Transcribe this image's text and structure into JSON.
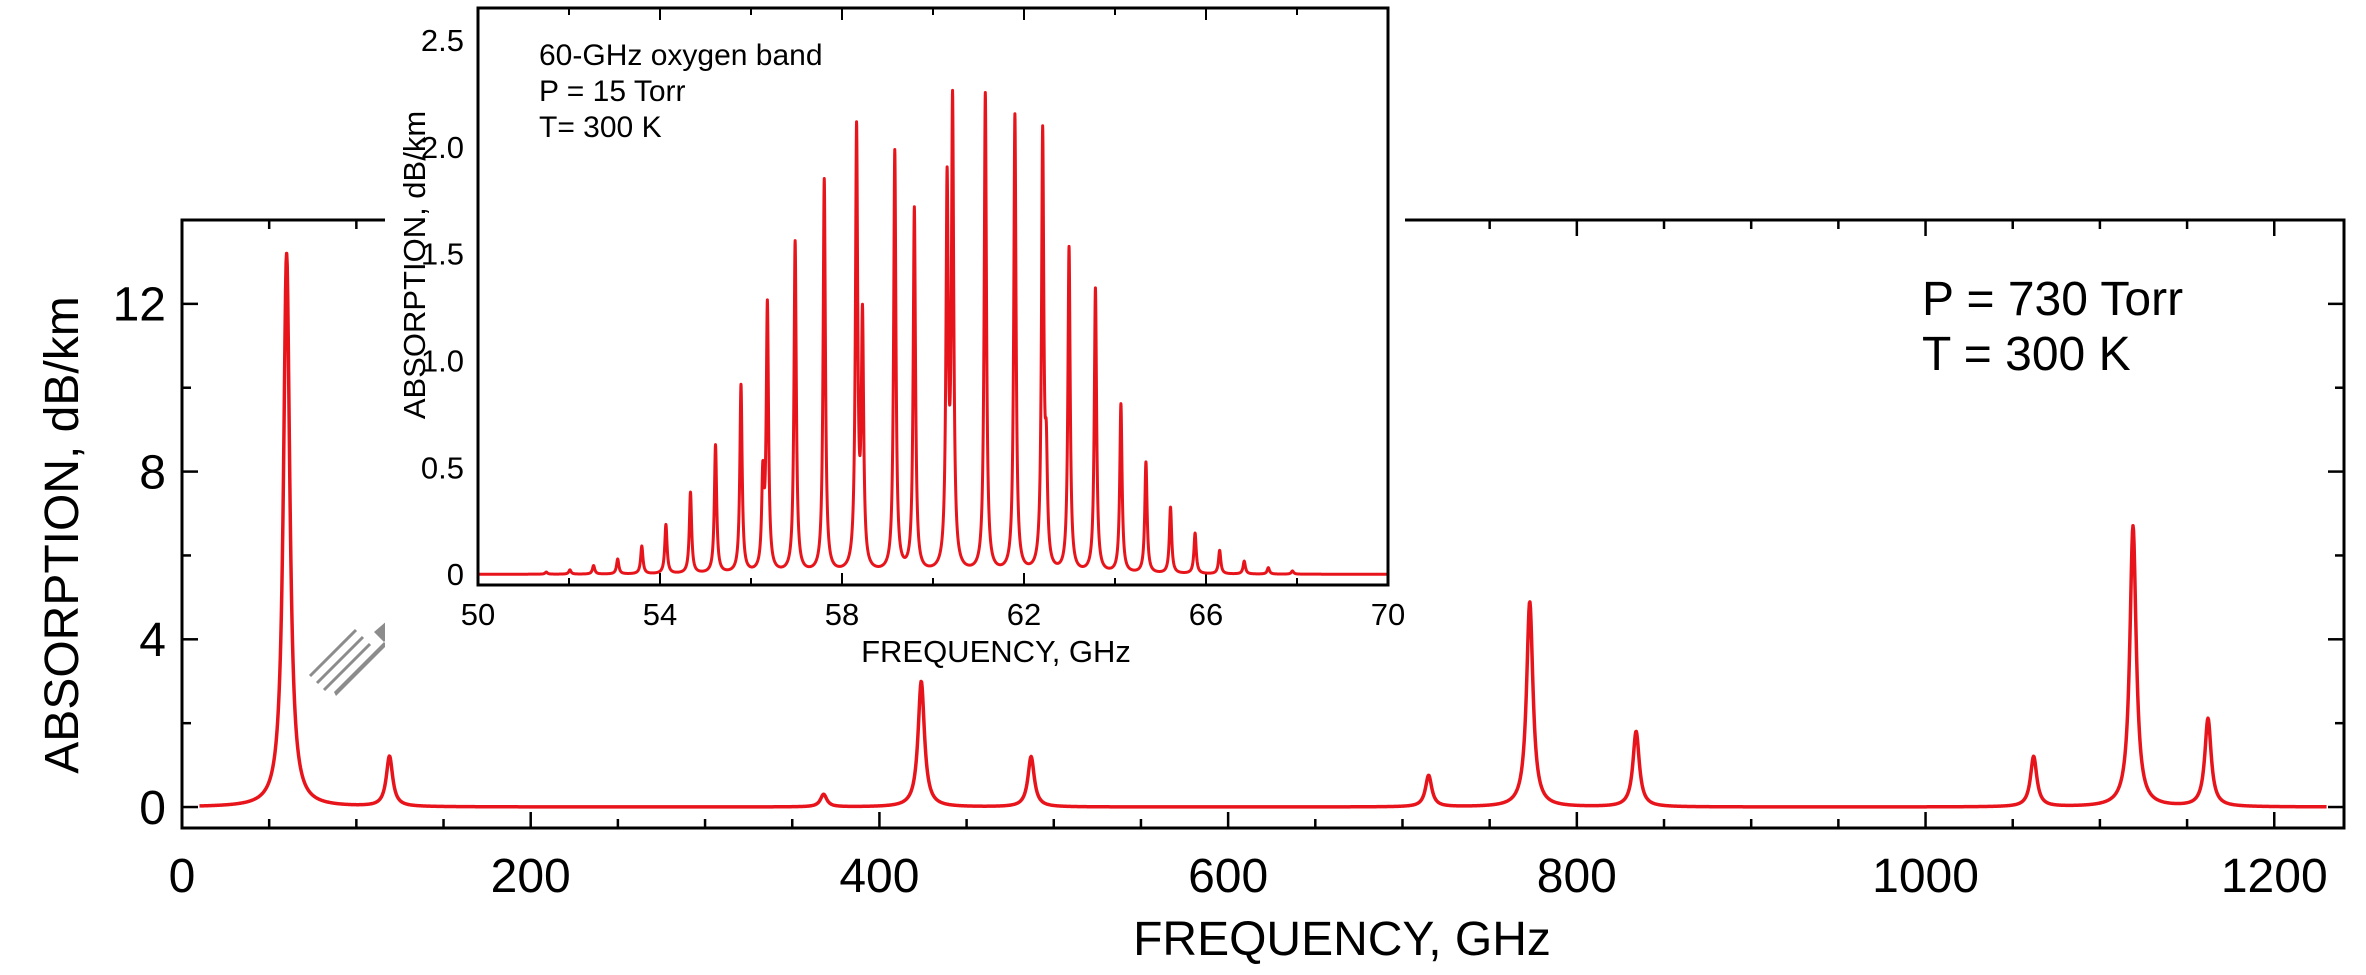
{
  "chart_data": [
    {
      "id": "main",
      "type": "line",
      "xlabel": "FREQUENCY,   GHz",
      "ylabel": "ABSORPTION,   dB/km",
      "xlim": [
        0,
        1240
      ],
      "ylim": [
        -0.5,
        14
      ],
      "x_ticks": [
        0,
        200,
        400,
        600,
        800,
        1000,
        1200
      ],
      "x_minor_step": 50,
      "y_ticks": [
        0,
        4,
        8,
        12
      ],
      "y_minor_step": 2,
      "annotations": [
        "P = 730 Torr",
        "T =  300 K"
      ],
      "series_color": "#e8141b",
      "line_x_range": [
        10,
        1230
      ],
      "peaks": [
        {
          "x": 60,
          "y": 13.2
        },
        {
          "x": 119,
          "y": 1.2
        },
        {
          "x": 368,
          "y": 0.3
        },
        {
          "x": 424,
          "y": 3.0
        },
        {
          "x": 487,
          "y": 1.2
        },
        {
          "x": 715,
          "y": 0.75
        },
        {
          "x": 773,
          "y": 4.9
        },
        {
          "x": 834,
          "y": 1.8
        },
        {
          "x": 1062,
          "y": 1.2
        },
        {
          "x": 1119,
          "y": 6.7
        },
        {
          "x": 1162,
          "y": 2.1
        }
      ]
    },
    {
      "id": "inset",
      "type": "line",
      "xlabel": "FREQUENCY,  GHz",
      "ylabel": "ABSORPTION,   dB/km",
      "xlim": [
        50,
        70
      ],
      "ylim": [
        -0.05,
        2.65
      ],
      "x_ticks": [
        50,
        54,
        58,
        62,
        66,
        70
      ],
      "x_minor_step": 2,
      "y_ticks": [
        0,
        0.5,
        1.0,
        1.5,
        2.0,
        2.5
      ],
      "y_tick_labels": [
        "0",
        "0.5",
        "1.0",
        "1.5",
        "2.0",
        "2.5"
      ],
      "annotations": [
        "60-GHz oxygen band",
        "P = 15 Torr",
        "T= 300 K"
      ],
      "series_color": "#e8141b",
      "line_x_range": [
        50,
        70
      ],
      "peaks": [
        {
          "x": 51.5,
          "y": 0.01
        },
        {
          "x": 52.02,
          "y": 0.02
        },
        {
          "x": 52.54,
          "y": 0.04
        },
        {
          "x": 53.07,
          "y": 0.07
        },
        {
          "x": 53.6,
          "y": 0.13
        },
        {
          "x": 54.13,
          "y": 0.23
        },
        {
          "x": 54.67,
          "y": 0.38
        },
        {
          "x": 55.22,
          "y": 0.6
        },
        {
          "x": 55.78,
          "y": 0.88
        },
        {
          "x": 56.26,
          "y": 0.42
        },
        {
          "x": 56.36,
          "y": 1.24
        },
        {
          "x": 56.97,
          "y": 1.55
        },
        {
          "x": 57.61,
          "y": 1.84
        },
        {
          "x": 58.32,
          "y": 2.05
        },
        {
          "x": 58.45,
          "y": 1.15
        },
        {
          "x": 59.16,
          "y": 1.97
        },
        {
          "x": 59.59,
          "y": 1.7
        },
        {
          "x": 60.31,
          "y": 1.77
        },
        {
          "x": 60.43,
          "y": 2.15
        },
        {
          "x": 61.15,
          "y": 2.24
        },
        {
          "x": 61.8,
          "y": 2.14
        },
        {
          "x": 62.41,
          "y": 2.03
        },
        {
          "x": 62.49,
          "y": 0.45
        },
        {
          "x": 62.99,
          "y": 1.52
        },
        {
          "x": 63.57,
          "y": 1.33
        },
        {
          "x": 64.13,
          "y": 0.79
        },
        {
          "x": 64.68,
          "y": 0.52
        },
        {
          "x": 65.22,
          "y": 0.31
        },
        {
          "x": 65.76,
          "y": 0.19
        },
        {
          "x": 66.3,
          "y": 0.11
        },
        {
          "x": 66.84,
          "y": 0.06
        },
        {
          "x": 67.37,
          "y": 0.03
        },
        {
          "x": 67.9,
          "y": 0.015
        }
      ]
    }
  ],
  "arrow": {
    "color": "#8c8c8c"
  }
}
